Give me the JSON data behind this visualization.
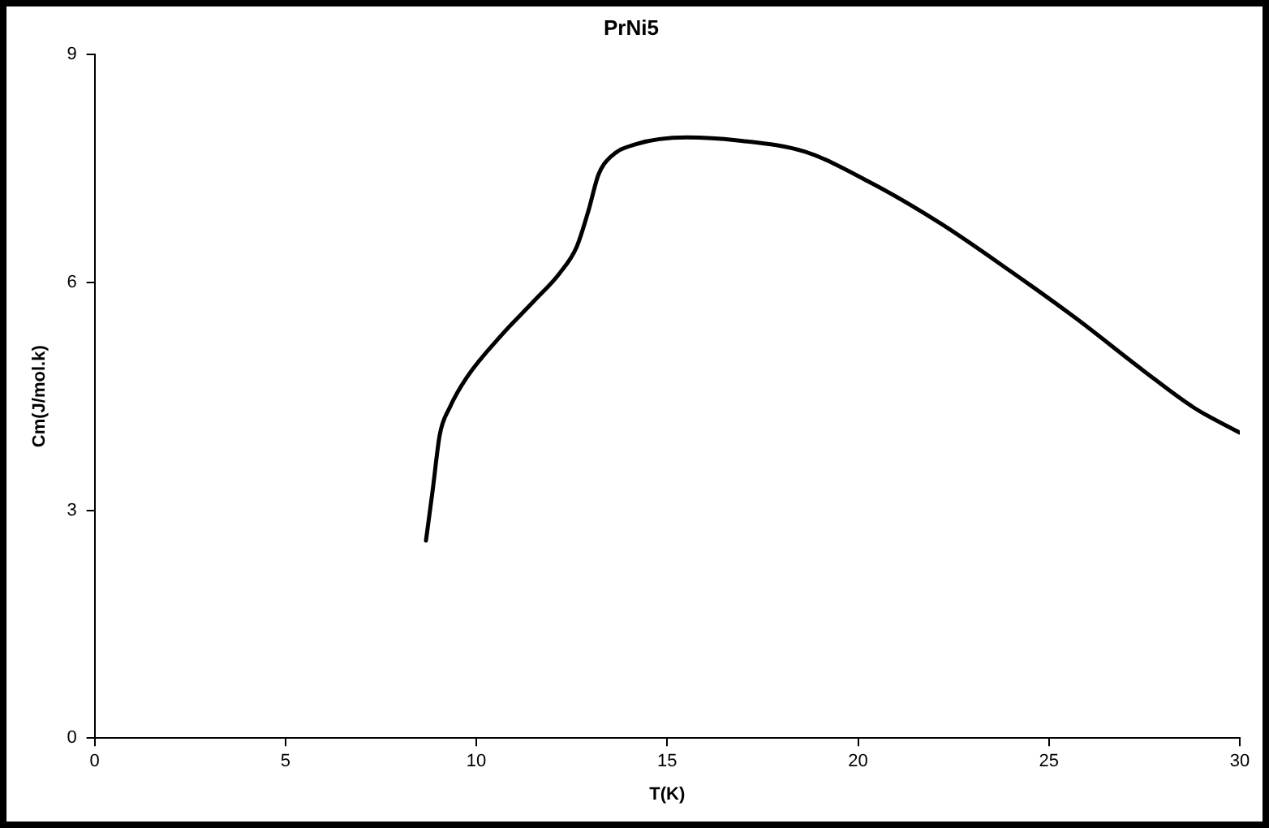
{
  "chart_data": {
    "type": "line",
    "title": "PrNi5",
    "xlabel": "T(K)",
    "ylabel": "Cm(J/mol.k)",
    "xlim": [
      0,
      30
    ],
    "xticks": [
      0,
      5,
      10,
      15,
      20,
      25,
      30
    ],
    "ylim": [
      0,
      9
    ],
    "yticks": [
      0,
      3,
      6,
      9
    ],
    "grid": false,
    "series": [
      {
        "color": "#000000",
        "x": [
          8.68,
          8.86,
          9.04,
          9.3,
          9.75,
          10.63,
          11.52,
          12.18,
          12.63,
          12.94,
          13.2,
          13.51,
          14.18,
          15.51,
          16.84,
          18.61,
          20.38,
          22.15,
          23.93,
          25.7,
          27.47,
          28.8,
          30
        ],
        "values": [
          2.6,
          3.28,
          3.99,
          4.35,
          4.75,
          5.29,
          5.76,
          6.12,
          6.47,
          6.95,
          7.42,
          7.65,
          7.82,
          7.91,
          7.87,
          7.72,
          7.3,
          6.78,
          6.17,
          5.53,
          4.84,
          4.35,
          4.02
        ]
      }
    ]
  }
}
